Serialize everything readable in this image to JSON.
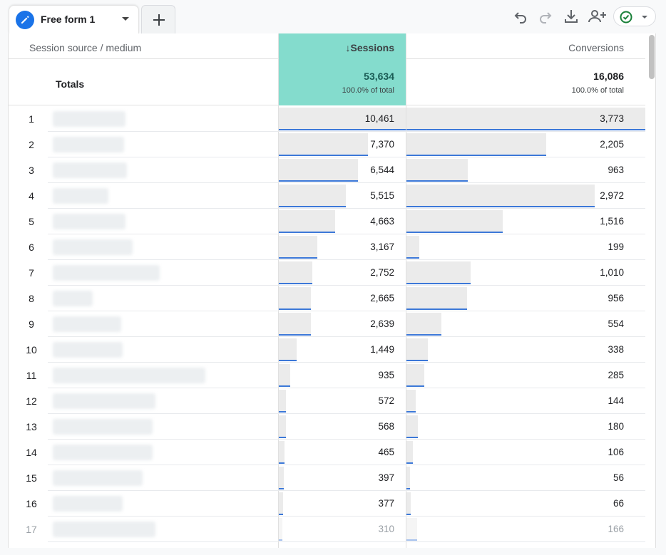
{
  "tabs": [
    {
      "label": "Free form 1",
      "icon": "pencil-icon",
      "active": true
    }
  ],
  "add_tab_icon": "plus-icon",
  "toolbar": {
    "icons": [
      "undo-icon",
      "redo-icon",
      "download-icon",
      "share-person-add-icon",
      "check-circle-icon"
    ],
    "accent": "#1a73e8",
    "status_color": "#188038"
  },
  "table": {
    "headers": {
      "dimension": "Session source / medium",
      "sessions": "Sessions",
      "conversions": "Conversions"
    },
    "sort_indicator": "↓",
    "totals": {
      "label": "Totals",
      "sessions": "53,634",
      "sessions_pct": "100.0% of total",
      "conversions": "16,086",
      "conversions_pct": "100.0% of total"
    },
    "highlight_color": "#84dccd",
    "rows": [
      {
        "rank": "1",
        "sessions": "10,461",
        "conversions": "3,773",
        "s": 10461,
        "c": 3773
      },
      {
        "rank": "2",
        "sessions": "7,370",
        "conversions": "2,205",
        "s": 7370,
        "c": 2205
      },
      {
        "rank": "3",
        "sessions": "6,544",
        "conversions": "963",
        "s": 6544,
        "c": 963
      },
      {
        "rank": "4",
        "sessions": "5,515",
        "conversions": "2,972",
        "s": 5515,
        "c": 2972
      },
      {
        "rank": "5",
        "sessions": "4,663",
        "conversions": "1,516",
        "s": 4663,
        "c": 1516
      },
      {
        "rank": "6",
        "sessions": "3,167",
        "conversions": "199",
        "s": 3167,
        "c": 199
      },
      {
        "rank": "7",
        "sessions": "2,752",
        "conversions": "1,010",
        "s": 2752,
        "c": 1010
      },
      {
        "rank": "8",
        "sessions": "2,665",
        "conversions": "956",
        "s": 2665,
        "c": 956
      },
      {
        "rank": "9",
        "sessions": "2,639",
        "conversions": "554",
        "s": 2639,
        "c": 554
      },
      {
        "rank": "10",
        "sessions": "1,449",
        "conversions": "338",
        "s": 1449,
        "c": 338
      },
      {
        "rank": "11",
        "sessions": "935",
        "conversions": "285",
        "s": 935,
        "c": 285
      },
      {
        "rank": "12",
        "sessions": "572",
        "conversions": "144",
        "s": 572,
        "c": 144
      },
      {
        "rank": "13",
        "sessions": "568",
        "conversions": "180",
        "s": 568,
        "c": 180
      },
      {
        "rank": "14",
        "sessions": "465",
        "conversions": "106",
        "s": 465,
        "c": 106
      },
      {
        "rank": "15",
        "sessions": "397",
        "conversions": "56",
        "s": 397,
        "c": 56
      },
      {
        "rank": "16",
        "sessions": "377",
        "conversions": "66",
        "s": 377,
        "c": 66
      },
      {
        "rank": "17",
        "sessions": "310",
        "conversions": "166",
        "s": 310,
        "c": 166
      }
    ]
  }
}
